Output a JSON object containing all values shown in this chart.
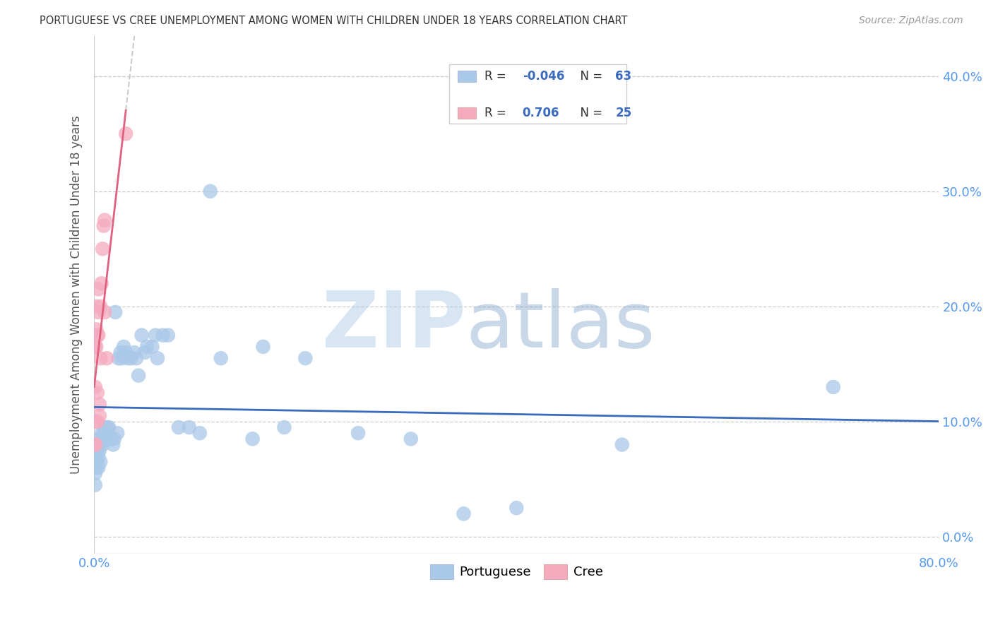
{
  "title": "PORTUGUESE VS CREE UNEMPLOYMENT AMONG WOMEN WITH CHILDREN UNDER 18 YEARS CORRELATION CHART",
  "source": "Source: ZipAtlas.com",
  "ylabel": "Unemployment Among Women with Children Under 18 years",
  "xlim": [
    0,
    0.8
  ],
  "ylim": [
    -0.015,
    0.435
  ],
  "yticks": [
    0.0,
    0.1,
    0.2,
    0.3,
    0.4
  ],
  "portuguese_R": -0.046,
  "portuguese_N": 63,
  "cree_R": 0.706,
  "cree_N": 25,
  "portuguese_color": "#aac8e8",
  "cree_color": "#f5aabe",
  "portuguese_line_color": "#3a6bbf",
  "cree_line_color": "#e06080",
  "dashed_color": "#cccccc",
  "background_color": "#ffffff",
  "watermark_zip": "ZIP",
  "watermark_atlas": "atlas",
  "portuguese_x": [
    0.001,
    0.001,
    0.001,
    0.001,
    0.002,
    0.002,
    0.002,
    0.003,
    0.003,
    0.004,
    0.004,
    0.005,
    0.005,
    0.006,
    0.006,
    0.007,
    0.008,
    0.009,
    0.01,
    0.01,
    0.011,
    0.012,
    0.013,
    0.014,
    0.015,
    0.016,
    0.018,
    0.019,
    0.02,
    0.022,
    0.023,
    0.025,
    0.026,
    0.028,
    0.03,
    0.032,
    0.035,
    0.038,
    0.04,
    0.042,
    0.045,
    0.048,
    0.05,
    0.055,
    0.058,
    0.06,
    0.065,
    0.07,
    0.08,
    0.09,
    0.1,
    0.11,
    0.12,
    0.15,
    0.16,
    0.18,
    0.2,
    0.25,
    0.3,
    0.35,
    0.4,
    0.5,
    0.7
  ],
  "portuguese_y": [
    0.075,
    0.065,
    0.055,
    0.045,
    0.08,
    0.07,
    0.06,
    0.075,
    0.065,
    0.07,
    0.06,
    0.085,
    0.075,
    0.08,
    0.065,
    0.09,
    0.08,
    0.09,
    0.095,
    0.085,
    0.09,
    0.085,
    0.095,
    0.095,
    0.085,
    0.085,
    0.08,
    0.085,
    0.195,
    0.09,
    0.155,
    0.16,
    0.155,
    0.165,
    0.16,
    0.155,
    0.155,
    0.16,
    0.155,
    0.14,
    0.175,
    0.16,
    0.165,
    0.165,
    0.175,
    0.155,
    0.175,
    0.175,
    0.095,
    0.095,
    0.09,
    0.3,
    0.155,
    0.085,
    0.165,
    0.095,
    0.155,
    0.09,
    0.085,
    0.02,
    0.025,
    0.08,
    0.13
  ],
  "cree_x": [
    0.001,
    0.001,
    0.001,
    0.001,
    0.001,
    0.002,
    0.002,
    0.002,
    0.003,
    0.003,
    0.003,
    0.004,
    0.004,
    0.004,
    0.005,
    0.005,
    0.006,
    0.006,
    0.007,
    0.008,
    0.009,
    0.01,
    0.01,
    0.012,
    0.03
  ],
  "cree_y": [
    0.08,
    0.1,
    0.13,
    0.165,
    0.08,
    0.165,
    0.18,
    0.2,
    0.1,
    0.125,
    0.175,
    0.175,
    0.195,
    0.215,
    0.105,
    0.115,
    0.155,
    0.2,
    0.22,
    0.25,
    0.27,
    0.275,
    0.195,
    0.155,
    0.35
  ]
}
